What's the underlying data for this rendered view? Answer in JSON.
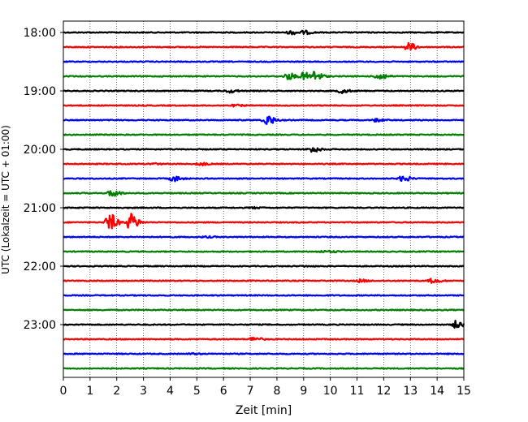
{
  "chart_data": {
    "type": "line",
    "title": "",
    "xlabel": "Zeit  [min]",
    "ylabel": "UTC (Lokalzeit = UTC + 01:00)",
    "xlim": [
      0,
      15
    ],
    "x_ticks": [
      0,
      1,
      2,
      3,
      4,
      5,
      6,
      7,
      8,
      9,
      10,
      11,
      12,
      13,
      14,
      15
    ],
    "y_tick_labels": [
      "18:00",
      "19:00",
      "20:00",
      "21:00",
      "22:00",
      "23:00"
    ],
    "trace_interval_minutes": 15,
    "grid": "vertical dotted lines at each minute",
    "colors": {
      "cycle": [
        "#000000",
        "#ff0000",
        "#0000ff",
        "#008000"
      ]
    },
    "series": [
      {
        "start": "18:00",
        "events": [
          {
            "t": 8.5,
            "amp": 0.45
          },
          {
            "t": 9.0,
            "amp": 0.4
          }
        ]
      },
      {
        "start": "18:15",
        "events": [
          {
            "t": 12.9,
            "amp": 1.0
          }
        ]
      },
      {
        "start": "18:30",
        "events": []
      },
      {
        "start": "18:45",
        "events": [
          {
            "t": 8.4,
            "amp": 0.8
          },
          {
            "t": 9.0,
            "amp": 0.9
          },
          {
            "t": 9.4,
            "amp": 1.1
          },
          {
            "t": 11.8,
            "amp": 0.95
          }
        ]
      },
      {
        "start": "19:00",
        "events": [
          {
            "t": 6.2,
            "amp": 0.4
          },
          {
            "t": 10.4,
            "amp": 0.5
          }
        ]
      },
      {
        "start": "19:15",
        "events": [
          {
            "t": 6.4,
            "amp": 0.2
          }
        ]
      },
      {
        "start": "19:30",
        "events": [
          {
            "t": 7.6,
            "amp": 1.3
          },
          {
            "t": 11.7,
            "amp": 0.35
          }
        ]
      },
      {
        "start": "19:45",
        "events": []
      },
      {
        "start": "20:00",
        "events": [
          {
            "t": 9.3,
            "amp": 0.7
          }
        ]
      },
      {
        "start": "20:15",
        "events": [
          {
            "t": 5.1,
            "amp": 0.35
          },
          {
            "t": 3.3,
            "amp": 0.2
          }
        ]
      },
      {
        "start": "20:30",
        "events": [
          {
            "t": 4.1,
            "amp": 0.65
          },
          {
            "t": 12.7,
            "amp": 0.75
          }
        ]
      },
      {
        "start": "20:45",
        "events": [
          {
            "t": 1.8,
            "amp": 0.9
          }
        ]
      },
      {
        "start": "21:00",
        "events": [
          {
            "t": 7.1,
            "amp": 0.15
          }
        ]
      },
      {
        "start": "21:15",
        "events": [
          {
            "t": 1.7,
            "amp": 2.2
          },
          {
            "t": 2.5,
            "amp": 2.1
          }
        ]
      },
      {
        "start": "21:30",
        "events": [
          {
            "t": 5.3,
            "amp": 0.15
          }
        ]
      },
      {
        "start": "21:45",
        "events": [
          {
            "t": 9.6,
            "amp": 0.15
          },
          {
            "t": 10.0,
            "amp": 0.15
          }
        ]
      },
      {
        "start": "22:00",
        "events": [
          {
            "t": 9.0,
            "amp": 0.1
          }
        ]
      },
      {
        "start": "22:15",
        "events": [
          {
            "t": 11.1,
            "amp": 0.3
          },
          {
            "t": 13.8,
            "amp": 0.55
          }
        ]
      },
      {
        "start": "22:30",
        "events": []
      },
      {
        "start": "22:45",
        "events": []
      },
      {
        "start": "23:00",
        "events": [
          {
            "t": 14.7,
            "amp": 0.9
          }
        ]
      },
      {
        "start": "23:15",
        "events": [
          {
            "t": 7.1,
            "amp": 0.5
          }
        ]
      },
      {
        "start": "23:30",
        "events": [
          {
            "t": 4.8,
            "amp": 0.15
          }
        ]
      },
      {
        "start": "23:45",
        "events": []
      }
    ]
  }
}
